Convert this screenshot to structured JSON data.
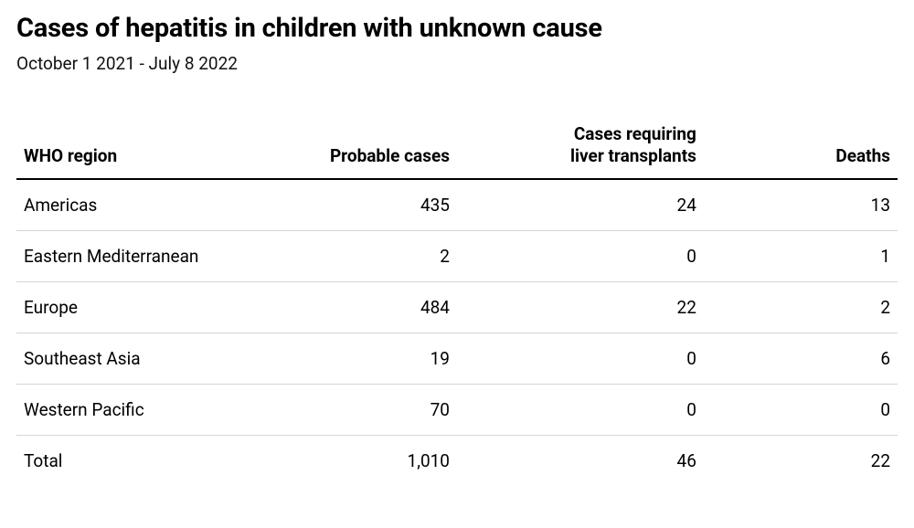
{
  "title": "Cases of hepatitis in children with unknown cause",
  "date_range": "October 1 2021 - July 8 2022",
  "table": {
    "type": "table",
    "background_color": "#ffffff",
    "text_color": "#000000",
    "header_rule_color": "#000000",
    "row_divider_color": "#d5d5d5",
    "font_size_pt": 14,
    "title_font_size_pt": 22,
    "columns": [
      {
        "label": "WHO region",
        "align": "left",
        "width_pct": 28
      },
      {
        "label": "Probable cases",
        "align": "right",
        "width_pct": 22
      },
      {
        "label": "Cases requiring\nliver transplants",
        "align": "right",
        "width_pct": 28
      },
      {
        "label": "Deaths",
        "align": "right",
        "width_pct": 22
      }
    ],
    "rows": [
      {
        "region": "Americas",
        "probable": "435",
        "transplants": "24",
        "deaths": "13"
      },
      {
        "region": "Eastern Mediterranean",
        "probable": "2",
        "transplants": "0",
        "deaths": "1"
      },
      {
        "region": "Europe",
        "probable": "484",
        "transplants": "22",
        "deaths": "2"
      },
      {
        "region": "Southeast Asia",
        "probable": "19",
        "transplants": "0",
        "deaths": "6"
      },
      {
        "region": "Western Pacific",
        "probable": "70",
        "transplants": "0",
        "deaths": "0"
      }
    ],
    "total": {
      "region": "Total",
      "probable": "1,010",
      "transplants": "46",
      "deaths": "22"
    }
  }
}
